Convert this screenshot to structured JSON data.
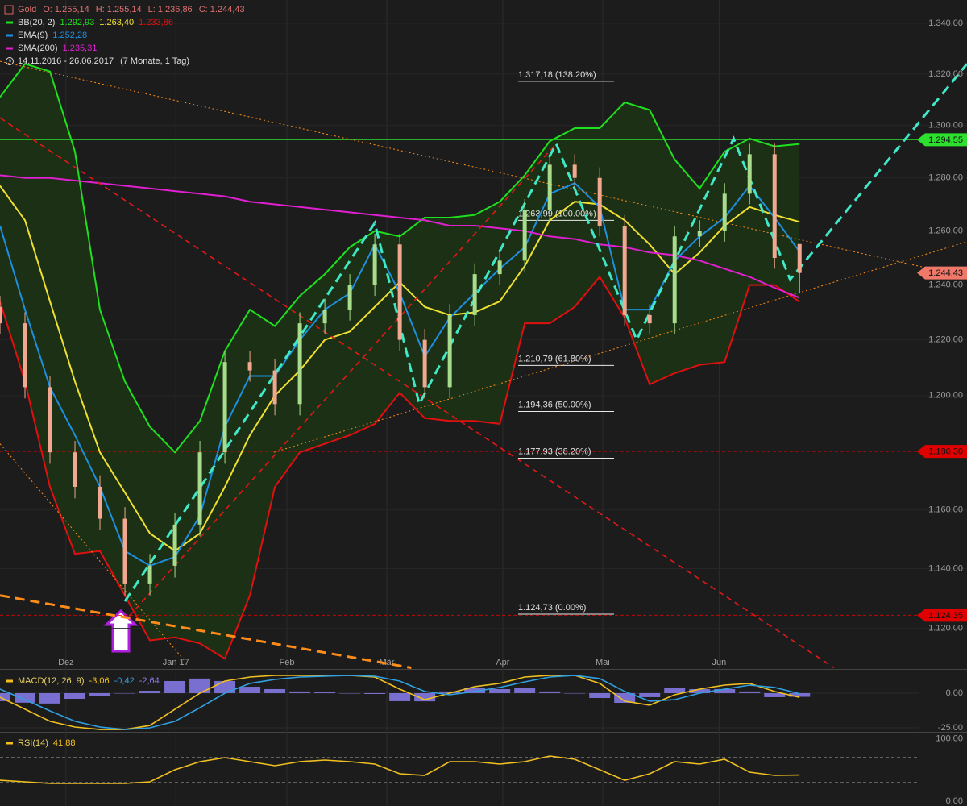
{
  "chart_data": [
    {
      "type": "candlestick",
      "title": "Gold",
      "ohlc_labels": [
        "O: 1.255,14",
        "H: 1.255,14",
        "L: 1.236,86",
        "C: 1.244,43"
      ],
      "date_range": "14.11.2016 - 26.06.2017",
      "date_range_note": "(7 Monate, 1 Tag)",
      "log_scale": true,
      "grid": true,
      "xlim": [
        0,
        193.5
      ],
      "xticks": [
        {
          "value": 13.2,
          "label": "Dez"
        },
        {
          "value": 35.2,
          "label": "Jan 17"
        },
        {
          "value": 57.4,
          "label": "Feb"
        },
        {
          "value": 77.4,
          "label": "Mär"
        },
        {
          "value": 100.6,
          "label": "Apr"
        },
        {
          "value": 120.6,
          "label": "Mai"
        },
        {
          "value": 143.9,
          "label": "Jun"
        }
      ],
      "ylim": [
        1106.6,
        1349.3
      ],
      "yticks": [
        {
          "value": 1340,
          "label": "1.340,00"
        },
        {
          "value": 1320,
          "label": "1.320,00"
        },
        {
          "value": 1300,
          "label": "1.300,00"
        },
        {
          "value": 1280,
          "label": "1.280,00"
        },
        {
          "value": 1260,
          "label": "1.260,00"
        },
        {
          "value": 1240,
          "label": "1.240,00"
        },
        {
          "value": 1220,
          "label": "1.220,00"
        },
        {
          "value": 1200,
          "label": "1.200,00"
        },
        {
          "value": 1160,
          "label": "1.160,00"
        },
        {
          "value": 1140,
          "label": "1.140,00"
        },
        {
          "value": 1120,
          "label": "1.120,00"
        }
      ],
      "x": [
        0,
        5,
        10,
        15,
        20,
        25,
        30,
        35,
        40,
        45,
        50,
        55,
        60,
        65,
        70,
        75,
        80,
        85,
        90,
        95,
        100,
        105,
        110,
        115,
        120,
        125,
        130,
        135,
        140,
        145,
        150,
        155,
        160
      ],
      "up_color": "#a8dc8c",
      "down_color": "#f0a890",
      "open": [
        1232,
        1226,
        1203,
        1180,
        1168,
        1157,
        1135,
        1141,
        1155,
        1180,
        1212,
        1209,
        1197,
        1226,
        1231,
        1240,
        1255,
        1220,
        1203,
        1229,
        1244,
        1249,
        1268,
        1285,
        1280,
        1262,
        1229,
        1226,
        1258,
        1260,
        1274,
        1289,
        1255.14
      ],
      "high": [
        1236,
        1230,
        1207,
        1184,
        1172,
        1161,
        1145,
        1159,
        1184,
        1216,
        1216,
        1213,
        1230,
        1235,
        1244,
        1259,
        1259,
        1224,
        1233,
        1248,
        1253,
        1272,
        1289,
        1289,
        1284,
        1266,
        1233,
        1262,
        1264,
        1278,
        1293,
        1293,
        1255.14
      ],
      "low": [
        1222,
        1199,
        1176,
        1164,
        1153,
        1131,
        1131,
        1137,
        1151,
        1176,
        1205,
        1193,
        1193,
        1222,
        1227,
        1236,
        1216,
        1199,
        1199,
        1225,
        1240,
        1245,
        1264,
        1276,
        1258,
        1225,
        1222,
        1222,
        1254,
        1256,
        1270,
        1246,
        1236.86
      ],
      "close": [
        1226,
        1203,
        1180,
        1168,
        1157,
        1135,
        1141,
        1155,
        1180,
        1212,
        1209,
        1197,
        1226,
        1231,
        1240,
        1255,
        1220,
        1203,
        1229,
        1244,
        1249,
        1268,
        1285,
        1280,
        1262,
        1229,
        1226,
        1258,
        1260,
        1274,
        1289,
        1250,
        1244.43
      ],
      "band_fill": "#1b3014",
      "series": [
        {
          "name": "BB(20, 2)",
          "color": "#1ee01e",
          "legend_value": "1.292,93",
          "values": [
            1311,
            1324,
            1321,
            1290,
            1231,
            1205,
            1189,
            1180,
            1191,
            1216,
            1231,
            1225,
            1236,
            1244,
            1254,
            1260,
            1258,
            1265,
            1265,
            1266,
            1271,
            1281,
            1294,
            1299,
            1299,
            1309,
            1306,
            1287,
            1276,
            1290,
            1295,
            1292,
            1292.93
          ]
        },
        {
          "color": "#f0e030",
          "legend_value": "1.263,40",
          "values": [
            1277,
            1264,
            1234,
            1205,
            1180,
            1166,
            1152,
            1146,
            1152,
            1168,
            1186,
            1200,
            1209,
            1220,
            1223,
            1232,
            1241,
            1232,
            1229,
            1230,
            1234,
            1247,
            1264,
            1271,
            1270,
            1264,
            1255,
            1244,
            1252,
            1262,
            1269,
            1266,
            1263.4
          ]
        },
        {
          "color": "#e01010",
          "legend_value": "1.233,86",
          "values": [
            1234,
            1205,
            1168,
            1145,
            1146,
            1131,
            1116,
            1117,
            1115,
            1110,
            1131,
            1168,
            1180,
            1183,
            1186,
            1190,
            1201,
            1192,
            1191,
            1191,
            1190,
            1226,
            1226,
            1232,
            1243,
            1228,
            1204,
            1208,
            1211,
            1212,
            1240,
            1240,
            1233.86
          ]
        },
        {
          "name": "EMA(9)",
          "color": "#1e8fe0",
          "legend_value": "1.252,28",
          "values": [
            1262,
            1231,
            1203,
            1186,
            1168,
            1146,
            1141,
            1144,
            1158,
            1189,
            1207,
            1207,
            1220,
            1231,
            1237,
            1255,
            1237,
            1214,
            1228,
            1237,
            1246,
            1254,
            1274,
            1278,
            1269,
            1231,
            1231,
            1249,
            1258,
            1265,
            1277,
            1265,
            1252.28
          ]
        },
        {
          "name": "SMA(200)",
          "color": "#e020d0",
          "legend_value": "1.235,31",
          "values": [
            1281,
            1280,
            1280,
            1279,
            1278,
            1277,
            1276,
            1275,
            1274,
            1273,
            1271,
            1270,
            1269,
            1268,
            1267,
            1266,
            1265,
            1264,
            1262,
            1262,
            1261,
            1260,
            1258,
            1257,
            1255,
            1254,
            1252,
            1251,
            1249,
            1246,
            1243,
            1239,
            1235.31
          ]
        }
      ],
      "trendlines": [
        {
          "color": "#ff8c1a",
          "style": "dotted",
          "x": [
            0,
            193.5
          ],
          "y": [
            1325,
            1243
          ]
        },
        {
          "color": "#ff8c1a",
          "style": "dotted",
          "x": [
            54.8,
            193.5
          ],
          "y": [
            1180,
            1256
          ]
        },
        {
          "color": "#ff8c1a",
          "style": "dotted",
          "x": [
            0,
            37.1
          ],
          "y": [
            1183,
            1109
          ]
        },
        {
          "color": "#ff8c1a",
          "style": "thick-dashed",
          "x": [
            0,
            82.3
          ],
          "y": [
            1131,
            1107
          ]
        },
        {
          "color": "#e01818",
          "style": "dashed",
          "x": [
            0,
            166.9
          ],
          "y": [
            1303,
            1107
          ]
        },
        {
          "color": "#e01818",
          "style": "dashed",
          "x": [
            25.8,
            111.3
          ],
          "y": [
            1124,
            1293
          ]
        },
        {
          "color": "#40e8c8",
          "style": "thick-dashed",
          "x": [
            25,
            75,
            83.9,
            111.3,
            127.4,
            146.8,
            158.1,
            193.5
          ],
          "y": [
            1129,
            1263,
            1197,
            1293,
            1220,
            1295,
            1242,
            1324
          ]
        }
      ],
      "fib_levels": [
        {
          "value": 1317.18,
          "label": "1.317,18 (138.20%)"
        },
        {
          "value": 1263.99,
          "label": "1.263,99 (100.00%)"
        },
        {
          "value": 1210.79,
          "label": "1.210,79 (61.80%)"
        },
        {
          "value": 1194.36,
          "label": "1.194,36 (50.00%)"
        },
        {
          "value": 1177.93,
          "label": "1.177,93 (38.20%)"
        },
        {
          "value": 1124.73,
          "label": "1.124,73 (0.00%)"
        }
      ],
      "price_tags": [
        {
          "value": 1294.55,
          "label": "1.294,55",
          "color": "#2ee02e",
          "line": "solid"
        },
        {
          "value": 1244.43,
          "label": "1.244,43",
          "color": "#f07868",
          "line": "none"
        },
        {
          "value": 1180.3,
          "label": "1.180,30",
          "color": "#e00000",
          "line": "dashed"
        },
        {
          "value": 1124.35,
          "label": "1.124,35",
          "color": "#e00000",
          "line": "dashed"
        }
      ]
    },
    {
      "type": "macd",
      "title": "MACD(12, 26, 9)",
      "ylim": [
        -27.9,
        17.4
      ],
      "yticks": [
        {
          "value": 0,
          "label": "0,00"
        },
        {
          "value": -25,
          "label": "-25,00"
        }
      ],
      "xlim": [
        0,
        193.5
      ],
      "x": [
        0,
        5,
        10,
        15,
        20,
        25,
        30,
        35,
        40,
        45,
        50,
        55,
        60,
        65,
        70,
        75,
        80,
        85,
        90,
        95,
        100,
        105,
        110,
        115,
        120,
        125,
        130,
        135,
        140,
        145,
        150,
        155,
        160
      ],
      "series": [
        {
          "color": "#f0c020",
          "legend_value": "-3,06",
          "values": [
            -2.9,
            -11.6,
            -20.3,
            -24.4,
            -26.2,
            -26.2,
            -23.3,
            -11.6,
            0,
            8.7,
            11.6,
            12.8,
            12.8,
            12.8,
            12.8,
            11.6,
            2.9,
            -4.7,
            0,
            4.7,
            7,
            11.6,
            12.8,
            12.8,
            7,
            -5.8,
            -8.7,
            -1.2,
            2.9,
            5.8,
            7,
            1.2,
            -3.06
          ]
        },
        {
          "color": "#30a0e0",
          "legend_value": "-0,42",
          "values": [
            2.9,
            -4.7,
            -12.8,
            -20.3,
            -24.4,
            -26.2,
            -25,
            -20.3,
            -10.5,
            0,
            7,
            9.9,
            11.6,
            12.2,
            12.8,
            12.2,
            8.7,
            1.2,
            -1.2,
            1.2,
            4.1,
            8.1,
            11.6,
            12.8,
            10.5,
            1.2,
            -5.8,
            -4.7,
            0,
            2.9,
            5.8,
            4.1,
            -0.42
          ]
        }
      ],
      "histogram": {
        "color": "#8a7ef0",
        "legend_value": "-2,64",
        "values": [
          -5.8,
          -6.9,
          -7.5,
          -4.1,
          -1.8,
          0,
          1.7,
          8.7,
          10.5,
          8.7,
          4.6,
          2.9,
          1.2,
          0.6,
          0,
          -0.6,
          -5.8,
          -5.9,
          1.2,
          3.5,
          2.9,
          3.5,
          1.2,
          0,
          -3.5,
          -7,
          -2.9,
          3.5,
          2.9,
          2.9,
          1.2,
          -2.9,
          -2.64
        ]
      }
    },
    {
      "type": "rsi",
      "title": "RSI(14)",
      "ylim": [
        -7.7,
        111
      ],
      "yticks": [
        {
          "value": 100,
          "label": "100,00"
        },
        {
          "value": 0,
          "label": "0,00"
        }
      ],
      "levels": [
        70,
        30
      ],
      "xlim": [
        0,
        193.5
      ],
      "x": [
        0,
        5,
        10,
        15,
        20,
        25,
        30,
        35,
        40,
        45,
        50,
        55,
        60,
        65,
        70,
        75,
        80,
        85,
        90,
        95,
        100,
        105,
        110,
        115,
        120,
        125,
        130,
        135,
        140,
        145,
        150,
        155,
        160
      ],
      "series": [
        {
          "color": "#f0c020",
          "legend_value": "41,88",
          "values": [
            33.5,
            31,
            28.4,
            28.4,
            28.4,
            28.4,
            31,
            50.3,
            63.2,
            69.7,
            63.2,
            56.8,
            63.2,
            65.8,
            63.2,
            59.4,
            43.9,
            41.3,
            63.2,
            63.2,
            59.4,
            63.2,
            72.3,
            67.1,
            50.3,
            33.5,
            43.9,
            63.2,
            59.4,
            67.1,
            46.5,
            41.3,
            41.88
          ]
        }
      ]
    }
  ]
}
